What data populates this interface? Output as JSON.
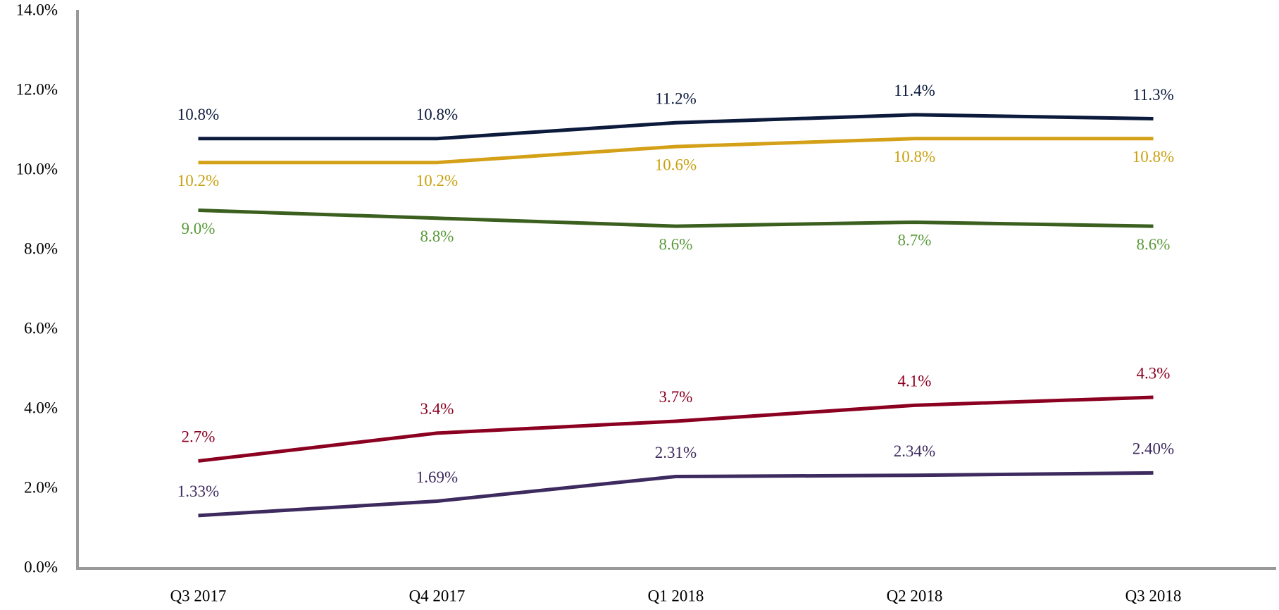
{
  "chart_data": {
    "type": "line",
    "categories": [
      "Q3 2017",
      "Q4 2017",
      "Q1 2018",
      "Q2 2018",
      "Q3 2018"
    ],
    "series": [
      {
        "color": "#0c1a3c",
        "label_color": "#0c1a3c",
        "label_position": "above",
        "values": [
          10.8,
          10.8,
          11.2,
          11.4,
          11.3
        ],
        "value_labels": [
          "10.8%",
          "10.8%",
          "11.2%",
          "11.4%",
          "11.3%"
        ]
      },
      {
        "color": "#d4a017",
        "label_color": "#c9a00e",
        "label_position": "below",
        "values": [
          10.2,
          10.2,
          10.6,
          10.8,
          10.8
        ],
        "value_labels": [
          "10.2%",
          "10.2%",
          "10.6%",
          "10.8%",
          "10.8%"
        ]
      },
      {
        "color": "#3a5f1e",
        "label_color": "#5a9a3a",
        "label_position": "below",
        "values": [
          9.0,
          8.8,
          8.6,
          8.7,
          8.6
        ],
        "value_labels": [
          "9.0%",
          "8.8%",
          "8.6%",
          "8.7%",
          "8.6%"
        ]
      },
      {
        "color": "#8b0020",
        "label_color": "#8b0020",
        "label_position": "above",
        "values": [
          2.7,
          3.4,
          3.7,
          4.1,
          4.3
        ],
        "value_labels": [
          "2.7%",
          "3.4%",
          "3.7%",
          "4.1%",
          "4.3%"
        ]
      },
      {
        "color": "#3d2a5e",
        "label_color": "#3d2a5e",
        "label_position": "above",
        "values": [
          1.33,
          1.69,
          2.31,
          2.34,
          2.4
        ],
        "value_labels": [
          "1.33%",
          "1.69%",
          "2.31%",
          "2.34%",
          "2.40%"
        ]
      }
    ],
    "ylim": [
      0,
      14
    ],
    "yticks": [
      {
        "value": 0,
        "label": "0.0%"
      },
      {
        "value": 2,
        "label": "2.0%"
      },
      {
        "value": 4,
        "label": "4.0%"
      },
      {
        "value": 6,
        "label": "6.0%"
      },
      {
        "value": 8,
        "label": "8.0%"
      },
      {
        "value": 10,
        "label": "10.0%"
      },
      {
        "value": 12,
        "label": "12.0%"
      },
      {
        "value": 14,
        "label": "14.0%"
      }
    ],
    "grid": false
  }
}
